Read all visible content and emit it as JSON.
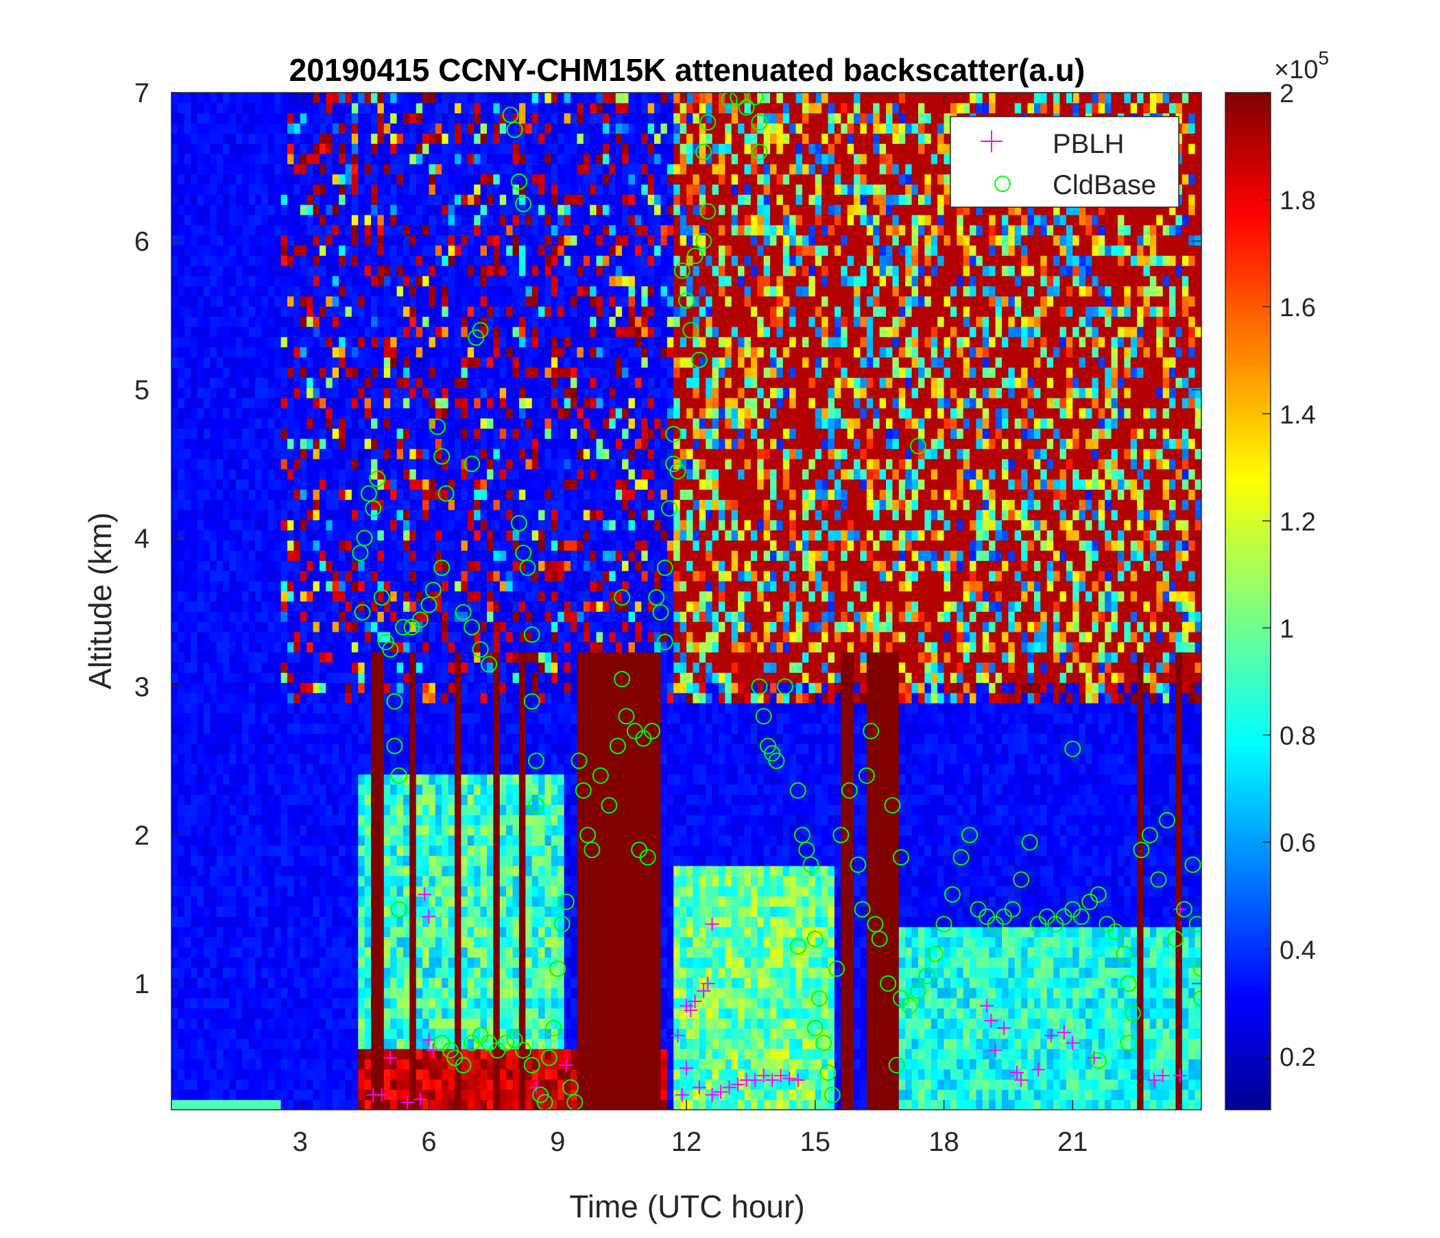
{
  "chart_data": {
    "type": "heatmap",
    "title": "20190415 CCNY-CHM15K attenuated backscatter(a.u)",
    "xlabel": "Time (UTC hour)",
    "ylabel": "Altitude (km)",
    "xlim": [
      0,
      24
    ],
    "ylim": [
      0.15,
      7
    ],
    "xticks": [
      3,
      6,
      9,
      12,
      15,
      18,
      21
    ],
    "xtick_labels": [
      "3",
      "6",
      "9",
      "12",
      "15",
      "18",
      "21"
    ],
    "yticks": [
      1,
      2,
      3,
      4,
      5,
      6,
      7
    ],
    "ytick_labels": [
      "1",
      "2",
      "3",
      "4",
      "5",
      "6",
      "7"
    ],
    "colormap": "jet",
    "colorbar": {
      "range": [
        10000,
        200000
      ],
      "multiplier_label": "×10",
      "multiplier_exponent": "5",
      "ticks": [
        0.2,
        0.4,
        0.6,
        0.8,
        1,
        1.2,
        1.4,
        1.6,
        1.8,
        2
      ],
      "tick_labels": [
        "0.2",
        "0.4",
        "0.6",
        "0.8",
        "1",
        "1.2",
        "1.4",
        "1.6",
        "1.8",
        "2"
      ]
    },
    "legend": {
      "placement": "top-right",
      "entries": [
        {
          "label": "PBLH",
          "marker": "+",
          "color": "#ff00ff"
        },
        {
          "label": "CldBase",
          "marker": "o",
          "color": "#00ff00"
        }
      ]
    },
    "series": [
      {
        "name": "PBLH",
        "marker": "+",
        "color": "#ff00ff",
        "points": [
          [
            4.7,
            0.25
          ],
          [
            4.9,
            0.25
          ],
          [
            5.1,
            0.5
          ],
          [
            5.5,
            0.2
          ],
          [
            5.8,
            0.22
          ],
          [
            6.0,
            1.45
          ],
          [
            5.9,
            1.6
          ],
          [
            6.0,
            0.62
          ],
          [
            6.1,
            0.55
          ],
          [
            8.5,
            0.3
          ],
          [
            9.2,
            0.45
          ],
          [
            11.8,
            0.65
          ],
          [
            11.9,
            0.25
          ],
          [
            12.0,
            0.85
          ],
          [
            12.1,
            0.82
          ],
          [
            12.2,
            0.88
          ],
          [
            12.4,
            0.95
          ],
          [
            12.5,
            1.0
          ],
          [
            12.6,
            1.4
          ],
          [
            12.0,
            0.43
          ],
          [
            12.3,
            0.3
          ],
          [
            12.6,
            0.25
          ],
          [
            12.8,
            0.27
          ],
          [
            13.0,
            0.3
          ],
          [
            13.2,
            0.32
          ],
          [
            13.4,
            0.35
          ],
          [
            13.6,
            0.35
          ],
          [
            13.8,
            0.38
          ],
          [
            14.0,
            0.35
          ],
          [
            14.2,
            0.38
          ],
          [
            14.4,
            0.36
          ],
          [
            14.6,
            0.35
          ],
          [
            19.0,
            0.85
          ],
          [
            19.1,
            0.75
          ],
          [
            19.2,
            0.55
          ],
          [
            19.4,
            0.7
          ],
          [
            19.7,
            0.4
          ],
          [
            19.8,
            0.35
          ],
          [
            20.2,
            0.42
          ],
          [
            20.5,
            0.65
          ],
          [
            20.8,
            0.67
          ],
          [
            21.0,
            0.6
          ],
          [
            21.5,
            0.5
          ],
          [
            22.9,
            0.35
          ],
          [
            23.1,
            0.38
          ],
          [
            23.5,
            1.5
          ],
          [
            23.5,
            0.38
          ]
        ]
      },
      {
        "name": "CldBase",
        "marker": "o",
        "color": "#00ff00",
        "points": [
          [
            4.4,
            3.9
          ],
          [
            4.45,
            3.5
          ],
          [
            4.5,
            4.0
          ],
          [
            4.6,
            4.3
          ],
          [
            4.7,
            4.2
          ],
          [
            4.8,
            4.4
          ],
          [
            4.9,
            3.6
          ],
          [
            5.0,
            3.3
          ],
          [
            5.1,
            3.25
          ],
          [
            5.2,
            2.9
          ],
          [
            5.2,
            2.6
          ],
          [
            5.3,
            2.4
          ],
          [
            5.4,
            3.4
          ],
          [
            5.6,
            3.4
          ],
          [
            5.8,
            3.45
          ],
          [
            6.0,
            3.55
          ],
          [
            6.1,
            3.65
          ],
          [
            6.3,
            3.8
          ],
          [
            5.3,
            1.5
          ],
          [
            6.2,
            4.75
          ],
          [
            6.3,
            4.55
          ],
          [
            6.4,
            4.3
          ],
          [
            6.3,
            0.6
          ],
          [
            6.5,
            0.55
          ],
          [
            6.6,
            0.5
          ],
          [
            6.8,
            0.45
          ],
          [
            7.0,
            0.6
          ],
          [
            7.2,
            0.65
          ],
          [
            7.4,
            0.6
          ],
          [
            7.6,
            0.55
          ],
          [
            7.8,
            0.6
          ],
          [
            8.0,
            0.62
          ],
          [
            8.2,
            0.55
          ],
          [
            8.4,
            0.45
          ],
          [
            8.6,
            0.25
          ],
          [
            8.7,
            0.2
          ],
          [
            6.8,
            3.5
          ],
          [
            7.0,
            3.4
          ],
          [
            7.2,
            3.25
          ],
          [
            7.4,
            3.15
          ],
          [
            7.0,
            4.5
          ],
          [
            7.1,
            5.35
          ],
          [
            7.2,
            5.4
          ],
          [
            7.9,
            6.85
          ],
          [
            8.0,
            6.75
          ],
          [
            8.1,
            6.4
          ],
          [
            8.2,
            6.25
          ],
          [
            8.1,
            4.1
          ],
          [
            8.2,
            3.9
          ],
          [
            8.3,
            3.8
          ],
          [
            8.4,
            3.35
          ],
          [
            8.4,
            2.9
          ],
          [
            8.5,
            2.5
          ],
          [
            8.5,
            2.2
          ],
          [
            8.8,
            0.5
          ],
          [
            8.9,
            0.7
          ],
          [
            9.0,
            1.1
          ],
          [
            9.1,
            1.4
          ],
          [
            9.2,
            1.55
          ],
          [
            9.3,
            0.3
          ],
          [
            9.4,
            0.2
          ],
          [
            9.5,
            2.5
          ],
          [
            9.6,
            2.3
          ],
          [
            9.7,
            2.0
          ],
          [
            9.8,
            1.9
          ],
          [
            10.0,
            2.4
          ],
          [
            10.2,
            2.2
          ],
          [
            10.4,
            2.6
          ],
          [
            10.5,
            3.05
          ],
          [
            10.6,
            2.8
          ],
          [
            10.8,
            2.7
          ],
          [
            11.0,
            2.65
          ],
          [
            11.2,
            2.7
          ],
          [
            10.9,
            1.9
          ],
          [
            11.1,
            1.85
          ],
          [
            10.5,
            3.6
          ],
          [
            11.3,
            3.6
          ],
          [
            11.4,
            3.5
          ],
          [
            11.5,
            3.3
          ],
          [
            11.5,
            3.8
          ],
          [
            11.6,
            4.2
          ],
          [
            11.7,
            4.5
          ],
          [
            11.8,
            4.45
          ],
          [
            11.7,
            4.7
          ],
          [
            11.9,
            5.8
          ],
          [
            12.0,
            5.6
          ],
          [
            12.1,
            5.4
          ],
          [
            12.2,
            5.9
          ],
          [
            12.3,
            5.2
          ],
          [
            12.4,
            6.0
          ],
          [
            12.4,
            6.6
          ],
          [
            12.5,
            6.8
          ],
          [
            12.5,
            6.2
          ],
          [
            13.0,
            6.95
          ],
          [
            13.2,
            6.97
          ],
          [
            13.4,
            6.9
          ],
          [
            13.6,
            6.97
          ],
          [
            13.7,
            6.8
          ],
          [
            13.7,
            6.6
          ],
          [
            13.7,
            3.0
          ],
          [
            13.8,
            2.8
          ],
          [
            13.9,
            2.6
          ],
          [
            14.0,
            2.55
          ],
          [
            14.1,
            2.5
          ],
          [
            14.3,
            3.0
          ],
          [
            14.6,
            2.3
          ],
          [
            14.7,
            2.0
          ],
          [
            14.8,
            1.9
          ],
          [
            14.9,
            1.8
          ],
          [
            15.0,
            1.3
          ],
          [
            14.6,
            1.25
          ],
          [
            15.1,
            0.9
          ],
          [
            15.2,
            0.6
          ],
          [
            15.3,
            0.4
          ],
          [
            15.4,
            0.25
          ],
          [
            15.5,
            1.1
          ],
          [
            15.0,
            0.7
          ],
          [
            15.6,
            2.0
          ],
          [
            15.8,
            2.3
          ],
          [
            16.0,
            1.8
          ],
          [
            16.2,
            2.4
          ],
          [
            16.3,
            2.7
          ],
          [
            16.1,
            1.5
          ],
          [
            16.4,
            1.4
          ],
          [
            16.5,
            1.3
          ],
          [
            16.8,
            2.2
          ],
          [
            17.0,
            1.85
          ],
          [
            16.7,
            1.0
          ],
          [
            16.9,
            0.45
          ],
          [
            17.4,
            4.62
          ],
          [
            17.0,
            0.9
          ],
          [
            17.2,
            0.85
          ],
          [
            17.4,
            0.95
          ],
          [
            17.6,
            1.05
          ],
          [
            17.8,
            1.2
          ],
          [
            18.0,
            1.4
          ],
          [
            18.2,
            1.6
          ],
          [
            18.4,
            1.85
          ],
          [
            18.6,
            2.0
          ],
          [
            18.8,
            1.5
          ],
          [
            19.0,
            1.45
          ],
          [
            19.2,
            1.4
          ],
          [
            19.4,
            1.45
          ],
          [
            19.6,
            1.5
          ],
          [
            19.8,
            1.7
          ],
          [
            20.0,
            1.95
          ],
          [
            20.2,
            1.4
          ],
          [
            20.4,
            1.45
          ],
          [
            20.6,
            1.4
          ],
          [
            20.8,
            1.45
          ],
          [
            21.0,
            1.5
          ],
          [
            21.0,
            2.58
          ],
          [
            21.2,
            1.45
          ],
          [
            21.4,
            1.55
          ],
          [
            21.6,
            1.6
          ],
          [
            21.8,
            1.4
          ],
          [
            22.0,
            1.35
          ],
          [
            22.2,
            1.2
          ],
          [
            22.3,
            1.0
          ],
          [
            22.4,
            0.8
          ],
          [
            22.3,
            0.6
          ],
          [
            21.6,
            0.48
          ],
          [
            22.6,
            1.9
          ],
          [
            22.8,
            2.0
          ],
          [
            23.0,
            1.7
          ],
          [
            23.2,
            2.1
          ],
          [
            23.4,
            1.3
          ],
          [
            23.6,
            1.5
          ],
          [
            23.8,
            1.8
          ],
          [
            23.9,
            1.4
          ],
          [
            24.0,
            1.1
          ],
          [
            24.0,
            0.9
          ]
        ]
      }
    ]
  }
}
